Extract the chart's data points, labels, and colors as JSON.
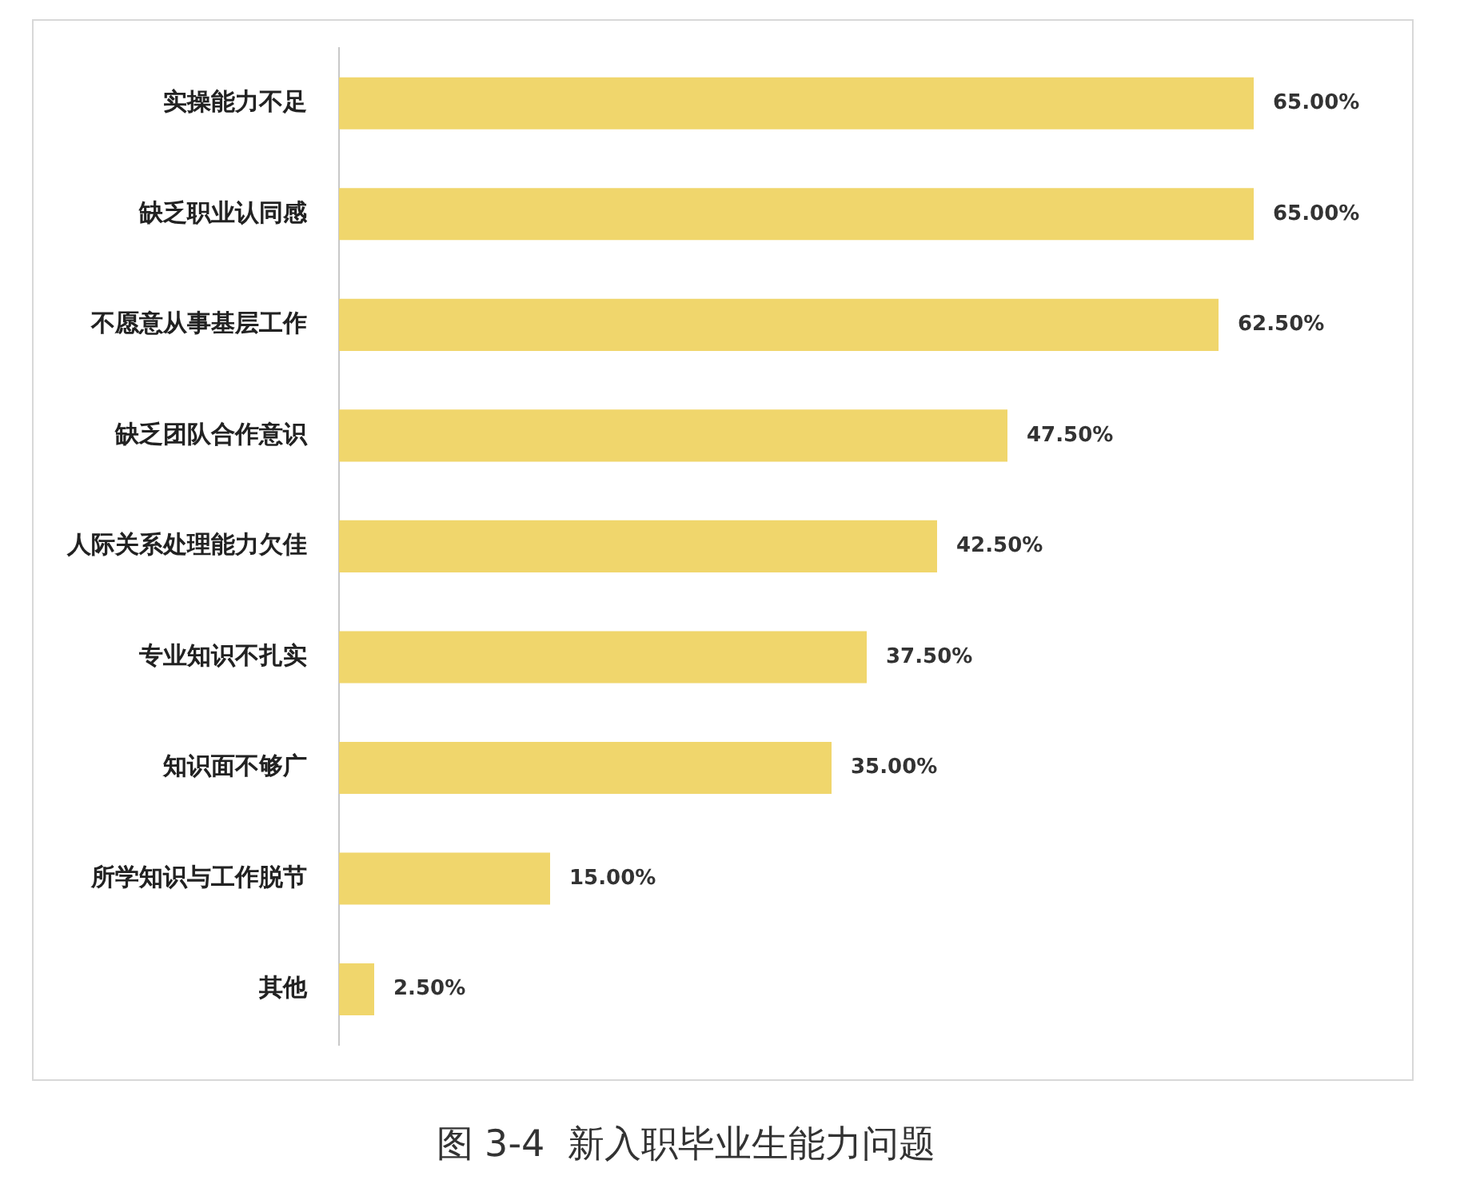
{
  "chart_data": {
    "type": "bar",
    "orientation": "horizontal",
    "relative": false,
    "title": "图 3-4  新入职毕业生能力问题",
    "categories": [
      "实操能力不足",
      "缺乏职业认同感",
      "不愿意从事基层工作",
      "缺乏团队合作意识",
      "人际关系处理能力欠佳",
      "专业知识不扎实",
      "知识面不够广",
      "所学知识与工作脱节",
      "其他"
    ],
    "values": [
      65,
      65,
      62.5,
      47.5,
      42.5,
      37.5,
      35,
      15,
      2.5
    ],
    "value_labels": [
      "65.00%",
      "65.00%",
      "62.50%",
      "47.50%",
      "42.50%",
      "37.50%",
      "35.00%",
      "15.00%",
      "2.50%"
    ],
    "color": "#f0d66c",
    "grid": false,
    "legend": false
  }
}
